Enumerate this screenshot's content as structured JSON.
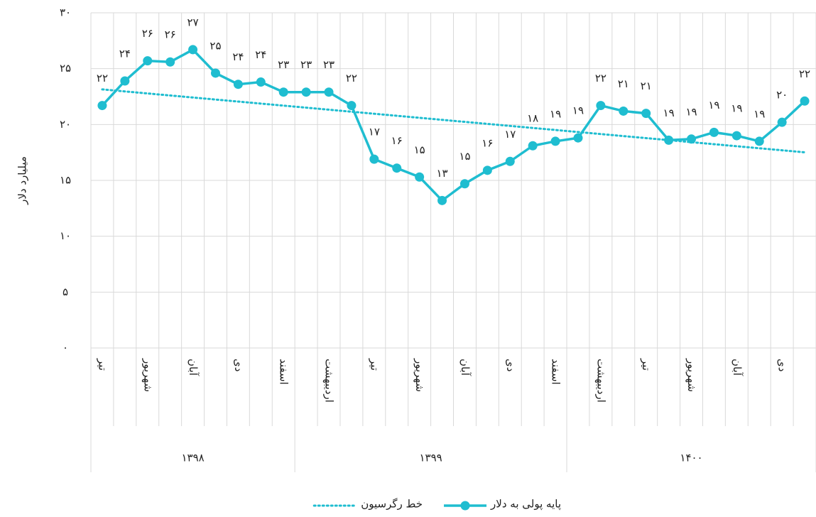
{
  "chart_data": {
    "type": "line",
    "y_label": "میلیارد دلار",
    "categories": [
      "تیر",
      null,
      "شهریور",
      null,
      "آبان",
      null,
      "دی",
      null,
      "اسفند",
      null,
      "اردیبهشت",
      null,
      "تیر",
      null,
      "شهریور",
      null,
      "آبان",
      null,
      "دی",
      null,
      "اسفند",
      null,
      "اردیبهشت",
      null,
      "تیر",
      null,
      "شهریور",
      null,
      "آبان",
      null,
      "دی",
      null
    ],
    "groups": [
      "۱۳۹۸",
      "۱۳۹۸",
      "۱۳۹۸",
      "۱۳۹۸",
      "۱۳۹۸",
      "۱۳۹۸",
      "۱۳۹۸",
      "۱۳۹۸",
      "۱۳۹۸",
      "۱۳۹۹",
      "۱۳۹۹",
      "۱۳۹۹",
      "۱۳۹۹",
      "۱۳۹۹",
      "۱۳۹۹",
      "۱۳۹۹",
      "۱۳۹۹",
      "۱۳۹۹",
      "۱۳۹۹",
      "۱۳۹۹",
      "۱۳۹۹",
      "۱۴۰۰",
      "۱۴۰۰",
      "۱۴۰۰",
      "۱۴۰۰",
      "۱۴۰۰",
      "۱۴۰۰",
      "۱۴۰۰",
      "۱۴۰۰",
      "۱۴۰۰",
      "۱۴۰۰",
      "۱۴۰۰"
    ],
    "series": [
      {
        "name": "پایه پولی به دلار",
        "color": "#1fbdd0",
        "values": [
          21.7,
          23.9,
          25.7,
          25.6,
          26.7,
          24.6,
          23.6,
          23.8,
          22.9,
          22.9,
          22.9,
          21.7,
          16.9,
          16.1,
          15.3,
          13.2,
          14.7,
          15.9,
          16.7,
          18.1,
          18.5,
          18.8,
          21.7,
          21.2,
          21.0,
          18.6,
          18.7,
          19.3,
          19.0,
          18.5,
          20.2,
          22.1
        ],
        "value_labels": [
          "۲۲",
          "۲۴",
          "۲۶",
          "۲۶",
          "۲۷",
          "۲۵",
          "۲۴",
          "۲۴",
          "۲۳",
          "۲۳",
          "۲۳",
          "۲۲",
          "۱۷",
          "۱۶",
          "۱۵",
          "۱۳",
          "۱۵",
          "۱۶",
          "۱۷",
          "۱۸",
          "۱۹",
          "۱۹",
          "۲۲",
          "۲۱",
          "۲۱",
          "۱۹",
          "۱۹",
          "۱۹",
          "۱۹",
          "۱۹",
          "۲۰",
          "۲۲"
        ]
      },
      {
        "name": "خط رگرسیون",
        "color": "#1fbdd0",
        "trendline": true
      }
    ],
    "ylim": [
      0,
      30
    ],
    "yticks": [
      {
        "value": 0,
        "label": "۰"
      },
      {
        "value": 5,
        "label": "۵"
      },
      {
        "value": 10,
        "label": "۱۰"
      },
      {
        "value": 15,
        "label": "۱۵"
      },
      {
        "value": 20,
        "label": "۲۰"
      },
      {
        "value": 25,
        "label": "۲۵"
      },
      {
        "value": 30,
        "label": "۳۰"
      }
    ],
    "grid": true
  }
}
